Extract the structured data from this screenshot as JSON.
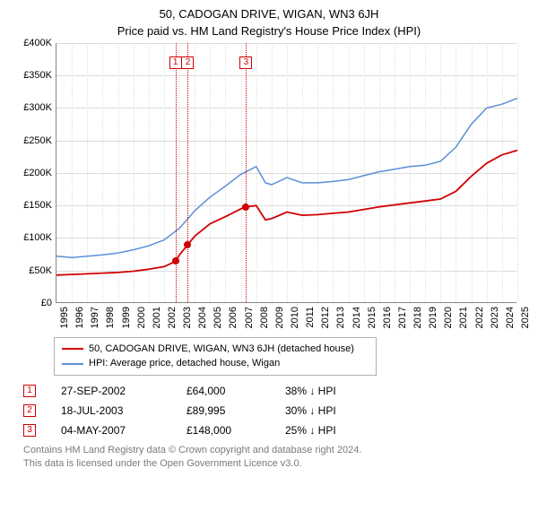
{
  "title": "50, CADOGAN DRIVE, WIGAN, WN3 6JH",
  "subtitle": "Price paid vs. HM Land Registry's House Price Index (HPI)",
  "chart": {
    "type": "line",
    "background_color": "#ffffff",
    "grid_color": "#dcdcdc",
    "axis_color": "#888888",
    "y": {
      "min": 0,
      "max": 400000,
      "step": 50000,
      "labels": [
        "£0",
        "£50K",
        "£100K",
        "£150K",
        "£200K",
        "£250K",
        "£300K",
        "£350K",
        "£400K"
      ]
    },
    "x": {
      "min": 1995,
      "max": 2025,
      "step": 1,
      "labels": [
        "1995",
        "1996",
        "1997",
        "1998",
        "1999",
        "2000",
        "2001",
        "2002",
        "2003",
        "2004",
        "2005",
        "2006",
        "2007",
        "2008",
        "2009",
        "2010",
        "2011",
        "2012",
        "2013",
        "2014",
        "2015",
        "2016",
        "2017",
        "2018",
        "2019",
        "2020",
        "2021",
        "2022",
        "2023",
        "2024",
        "2025"
      ]
    },
    "series": [
      {
        "name": "red",
        "label": "50, CADOGAN DRIVE, WIGAN, WN3 6JH (detached house)",
        "color": "#d00000",
        "line_width": 1.8,
        "points": [
          [
            1995,
            43000
          ],
          [
            1996,
            44000
          ],
          [
            1997,
            45000
          ],
          [
            1998,
            46000
          ],
          [
            1999,
            47000
          ],
          [
            2000,
            49000
          ],
          [
            2001,
            52000
          ],
          [
            2002,
            56000
          ],
          [
            2002.74,
            64000
          ],
          [
            2003,
            74000
          ],
          [
            2003.55,
            89995
          ],
          [
            2004,
            103000
          ],
          [
            2005,
            122000
          ],
          [
            2006,
            133000
          ],
          [
            2007,
            145000
          ],
          [
            2007.34,
            148000
          ],
          [
            2008,
            150000
          ],
          [
            2008.6,
            128000
          ],
          [
            2009,
            130000
          ],
          [
            2010,
            140000
          ],
          [
            2011,
            135000
          ],
          [
            2012,
            136000
          ],
          [
            2013,
            138000
          ],
          [
            2014,
            140000
          ],
          [
            2015,
            144000
          ],
          [
            2016,
            148000
          ],
          [
            2017,
            151000
          ],
          [
            2018,
            154000
          ],
          [
            2019,
            157000
          ],
          [
            2020,
            160000
          ],
          [
            2021,
            172000
          ],
          [
            2022,
            195000
          ],
          [
            2023,
            215000
          ],
          [
            2024,
            228000
          ],
          [
            2025,
            235000
          ]
        ]
      },
      {
        "name": "blue",
        "label": "HPI: Average price, detached house, Wigan",
        "color": "#5b8fd6",
        "line_width": 1.5,
        "points": [
          [
            1995,
            72000
          ],
          [
            1996,
            70000
          ],
          [
            1997,
            72000
          ],
          [
            1998,
            74000
          ],
          [
            1999,
            77000
          ],
          [
            2000,
            82000
          ],
          [
            2001,
            88000
          ],
          [
            2002,
            97000
          ],
          [
            2003,
            115000
          ],
          [
            2004,
            142000
          ],
          [
            2005,
            163000
          ],
          [
            2006,
            180000
          ],
          [
            2007,
            198000
          ],
          [
            2008,
            210000
          ],
          [
            2008.6,
            185000
          ],
          [
            2009,
            182000
          ],
          [
            2010,
            193000
          ],
          [
            2011,
            185000
          ],
          [
            2012,
            185000
          ],
          [
            2013,
            187000
          ],
          [
            2014,
            190000
          ],
          [
            2015,
            196000
          ],
          [
            2016,
            202000
          ],
          [
            2017,
            206000
          ],
          [
            2018,
            210000
          ],
          [
            2019,
            212000
          ],
          [
            2020,
            218000
          ],
          [
            2021,
            240000
          ],
          [
            2022,
            275000
          ],
          [
            2023,
            300000
          ],
          [
            2024,
            306000
          ],
          [
            2025,
            315000
          ]
        ]
      }
    ],
    "event_markers": [
      {
        "n": "1",
        "x": 2002.74,
        "y": 64000,
        "color": "#d00000"
      },
      {
        "n": "2",
        "x": 2003.55,
        "y": 89995,
        "color": "#d00000"
      },
      {
        "n": "3",
        "x": 2007.34,
        "y": 148000,
        "color": "#d00000"
      }
    ],
    "marker_box_y_value": 370000
  },
  "legend": {
    "items": [
      {
        "color": "#d00000",
        "label": "50, CADOGAN DRIVE, WIGAN, WN3 6JH (detached house)"
      },
      {
        "color": "#5b8fd6",
        "label": "HPI: Average price, detached house, Wigan"
      }
    ]
  },
  "annotations": [
    {
      "n": "1",
      "date": "27-SEP-2002",
      "price": "£64,000",
      "pct": "38% ↓ HPI"
    },
    {
      "n": "2",
      "date": "18-JUL-2003",
      "price": "£89,995",
      "pct": "30% ↓ HPI"
    },
    {
      "n": "3",
      "date": "04-MAY-2007",
      "price": "£148,000",
      "pct": "25% ↓ HPI"
    }
  ],
  "footer": {
    "line1": "Contains HM Land Registry data © Crown copyright and database right 2024.",
    "line2": "This data is licensed under the Open Government Licence v3.0."
  }
}
